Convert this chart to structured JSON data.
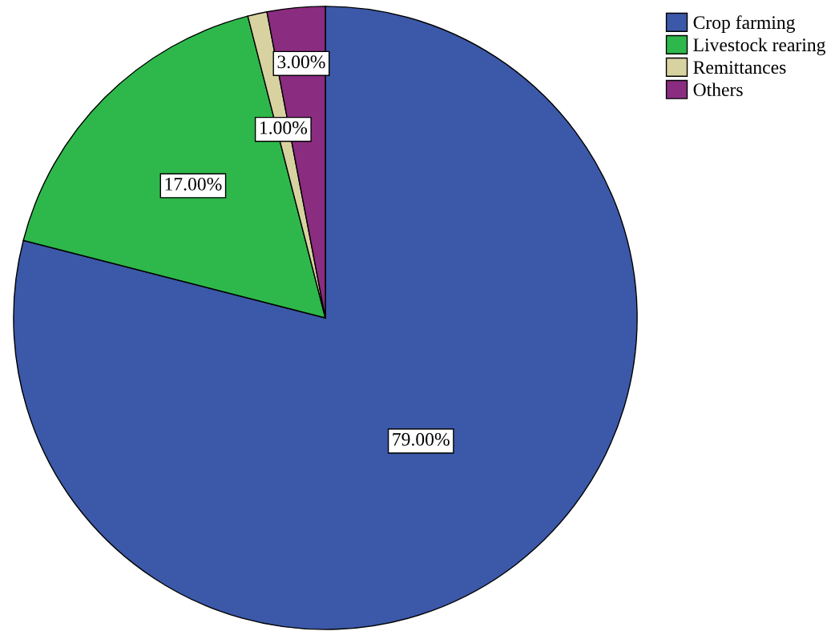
{
  "chart_data": {
    "type": "pie",
    "categories": [
      "Crop farming",
      "Livestock rearing",
      "Remittances",
      "Others"
    ],
    "values": [
      79,
      17,
      1,
      3
    ],
    "colors": [
      "#3c58a8",
      "#2eb84b",
      "#d8d2a0",
      "#8a2c80"
    ],
    "value_labels": [
      "79.00%",
      "17.00%",
      "1.00%",
      "3.00%"
    ],
    "legend": "top right"
  }
}
